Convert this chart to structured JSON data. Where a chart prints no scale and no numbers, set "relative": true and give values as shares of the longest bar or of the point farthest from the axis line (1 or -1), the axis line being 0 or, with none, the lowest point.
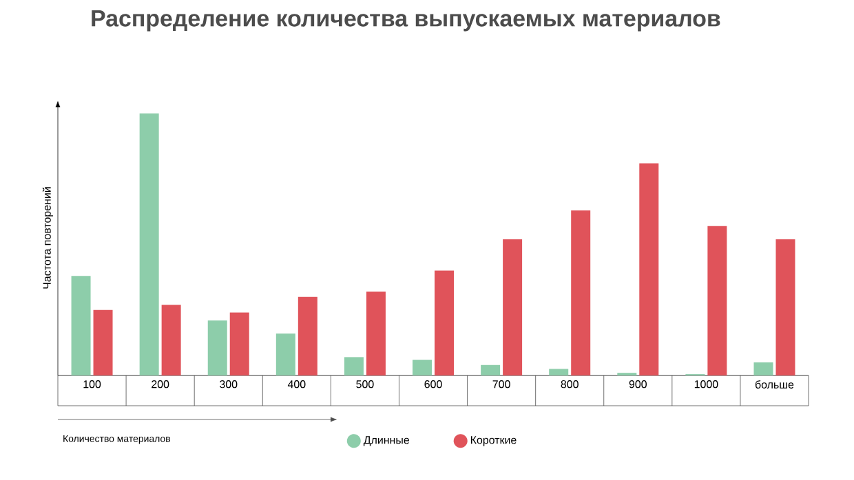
{
  "chart_data": {
    "type": "bar",
    "title": "Распределение количества выпускаемых материалов",
    "xlabel": "Количество материалов",
    "ylabel": "Частота повторений",
    "relative": true,
    "legend": "bottom",
    "categories": [
      "100",
      "200",
      "300",
      "400",
      "500",
      "600",
      "700",
      "800",
      "900",
      "1000",
      "больше"
    ],
    "series": [
      {
        "name": "Длинные",
        "color": "#8dcdaa",
        "values": [
          0.38,
          1,
          0.21,
          0.16,
          0.07,
          0.06,
          0.04,
          0.025,
          0.01,
          0.005,
          0.05
        ]
      },
      {
        "name": "Короткие",
        "color": "#e0535a",
        "values": [
          0.25,
          0.27,
          0.24,
          0.3,
          0.32,
          0.4,
          0.52,
          0.63,
          0.81,
          0.57,
          0.52
        ]
      }
    ]
  }
}
